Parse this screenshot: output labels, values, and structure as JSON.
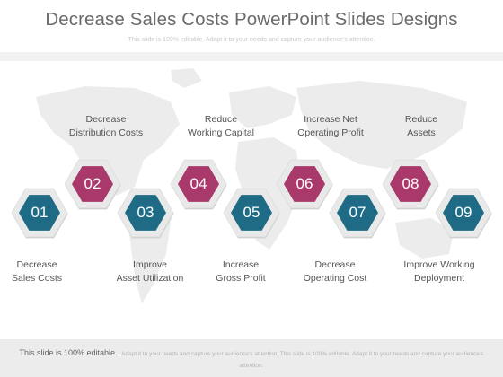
{
  "slide": {
    "title": "Decrease Sales Costs PowerPoint Slides Designs",
    "subtitle": "This slide is 100% editable. Adapt it to your needs and capture your audience's attention."
  },
  "colors": {
    "teal": "#1f6b86",
    "magenta": "#a8396a",
    "frame": "#e9e9e9"
  },
  "steps": [
    {
      "number": "01",
      "label": "Decrease\nSales Costs",
      "color": "teal"
    },
    {
      "number": "02",
      "label": "Decrease\nDistribution Costs",
      "color": "magenta"
    },
    {
      "number": "03",
      "label": "Improve\nAsset Utilization",
      "color": "teal"
    },
    {
      "number": "04",
      "label": "Reduce\nWorking Capital",
      "color": "magenta"
    },
    {
      "number": "05",
      "label": "Increase\nGross Profit",
      "color": "teal"
    },
    {
      "number": "06",
      "label": "Increase Net\nOperating Profit",
      "color": "magenta"
    },
    {
      "number": "07",
      "label": "Decrease\nOperating Cost",
      "color": "teal"
    },
    {
      "number": "08",
      "label": "Reduce\nAssets",
      "color": "magenta"
    },
    {
      "number": "09",
      "label": "Improve Working\nDeployment",
      "color": "teal"
    }
  ],
  "footer": {
    "strong": "This slide is 100% editable.",
    "light": "Adapt it to your needs and capture your audience's attention. This slide is 100% editable. Adapt it to your needs and capture your audience's attention."
  }
}
